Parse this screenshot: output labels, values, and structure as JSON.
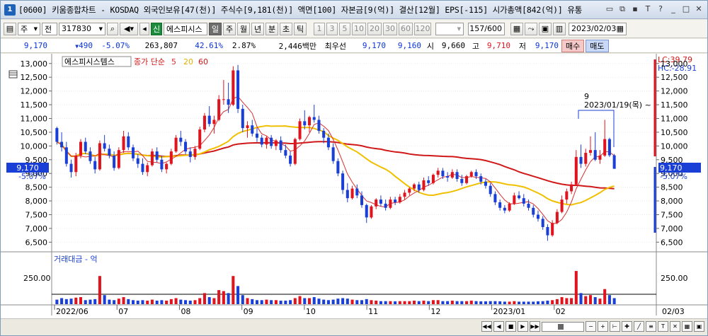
{
  "window": {
    "number": "1",
    "title": "[0600] 키움종합차트 - KOSDAQ 외국인보유[47(천)] 주식수[9,181(천)] 액면[100] 자본금[9(억)] 결산[12월] EPS[-115] 시가총액[842(억)] 유통"
  },
  "toolbar": {
    "market": "주",
    "period_type": "전",
    "code": "317830",
    "new_badge": "신",
    "stock_name": "에스피시스",
    "periods": [
      "일",
      "주",
      "월",
      "년",
      "분",
      "초",
      "틱"
    ],
    "active_period": "일",
    "intervals": [
      "1",
      "3",
      "5",
      "10",
      "20",
      "30",
      "60",
      "120"
    ],
    "count": "157",
    "count_total": "/600",
    "date": "2023/02/03"
  },
  "quote": {
    "price": "9,170",
    "change": "490",
    "change_pct": "-5.07%",
    "volume": "263,807",
    "volume_ratio": "42.61%",
    "turnover_rate": "2.87%",
    "amount": "2,446백만",
    "best_bid_label": "최우선",
    "ask": "9,170",
    "bid": "9,160",
    "open_label": "시",
    "open": "9,660",
    "high_label": "고",
    "high": "9,710",
    "low_label": "저",
    "low": "9,170",
    "buy_label": "매수",
    "sell_label": "매도"
  },
  "chart": {
    "stock_tag": "에스피시스템스",
    "legend_label": "종가 단순",
    "ma_periods": [
      "5",
      "20",
      "60"
    ],
    "lc": "LC:39.79",
    "hc": "HC:-28.91",
    "price_tag": "9,170",
    "price_tag_pct": "-5.07%",
    "annotation_count": "9",
    "annotation_date": "2023/01/19(목) ~",
    "volume_panel_label": "거래대금 - 억",
    "volume_tick": "250.00",
    "date_labels": [
      "2022/06",
      "07",
      "08",
      "09",
      "10",
      "11",
      "12",
      "2023/01",
      "02"
    ],
    "right_date": "02/03"
  },
  "chart_data": {
    "type": "candlestick",
    "yticks": [
      "13,000",
      "12,500",
      "12,000",
      "11,500",
      "11,000",
      "10,500",
      "10,000",
      "9,500",
      "9,000",
      "8,500",
      "8,000",
      "7,500",
      "7,000",
      "6,500"
    ],
    "ylim": [
      6200,
      13200
    ],
    "volume_ylim": [
      0,
      450
    ],
    "colors": {
      "up": "#e0141e",
      "down": "#1a3fd6",
      "ma5": "#d83030",
      "ma20": "#f0c000",
      "ma60": "#d01818"
    },
    "candles": [
      [
        10650,
        10700,
        10050,
        10150,
        45
      ],
      [
        10150,
        10500,
        9800,
        9950,
        60
      ],
      [
        9950,
        10150,
        9250,
        9350,
        50
      ],
      [
        9350,
        9500,
        8850,
        9050,
        55
      ],
      [
        9050,
        9750,
        8900,
        9650,
        65
      ],
      [
        9650,
        10250,
        9550,
        10150,
        70
      ],
      [
        10150,
        10300,
        9700,
        9800,
        40
      ],
      [
        9800,
        9950,
        9350,
        9450,
        45
      ],
      [
        9450,
        9600,
        9000,
        9150,
        50
      ],
      [
        9150,
        10200,
        9100,
        10100,
        280
      ],
      [
        10100,
        10400,
        9800,
        9900,
        90
      ],
      [
        9900,
        10050,
        9550,
        9650,
        45
      ],
      [
        9650,
        9800,
        9100,
        9200,
        40
      ],
      [
        9200,
        9950,
        9150,
        9850,
        55
      ],
      [
        9850,
        10550,
        9750,
        10350,
        70
      ],
      [
        10350,
        10500,
        9850,
        9950,
        50
      ],
      [
        9950,
        10050,
        9450,
        9550,
        40
      ],
      [
        9550,
        9700,
        9200,
        9350,
        35
      ],
      [
        9350,
        9550,
        8950,
        9050,
        40
      ],
      [
        9050,
        9400,
        8900,
        9300,
        35
      ],
      [
        9300,
        9900,
        9250,
        9800,
        45
      ],
      [
        9800,
        9950,
        9400,
        9500,
        35
      ],
      [
        9500,
        9650,
        9050,
        9150,
        40
      ],
      [
        9150,
        9400,
        9000,
        9350,
        35
      ],
      [
        9350,
        9900,
        9300,
        9800,
        50
      ],
      [
        9800,
        10400,
        9750,
        10300,
        60
      ],
      [
        10300,
        10550,
        10000,
        10150,
        45
      ],
      [
        10150,
        10250,
        9700,
        9800,
        40
      ],
      [
        9800,
        9950,
        9400,
        9600,
        35
      ],
      [
        9600,
        10000,
        9500,
        9900,
        40
      ],
      [
        9900,
        10700,
        9850,
        10600,
        60
      ],
      [
        10600,
        11200,
        10500,
        11100,
        110
      ],
      [
        11100,
        11450,
        10700,
        10800,
        70
      ],
      [
        10800,
        11100,
        10450,
        10950,
        60
      ],
      [
        10950,
        11850,
        10900,
        11700,
        140
      ],
      [
        11700,
        12400,
        11500,
        11700,
        130
      ],
      [
        11700,
        12300,
        11200,
        11500,
        110
      ],
      [
        11500,
        12900,
        11450,
        12750,
        280
      ],
      [
        12750,
        12950,
        11200,
        11350,
        180
      ],
      [
        11350,
        11500,
        10500,
        10650,
        90
      ],
      [
        10650,
        10900,
        10300,
        10750,
        60
      ],
      [
        10750,
        10950,
        10350,
        10450,
        50
      ],
      [
        10450,
        10650,
        10150,
        10300,
        40
      ],
      [
        10300,
        10400,
        9950,
        10050,
        40
      ],
      [
        10050,
        10350,
        9900,
        10300,
        45
      ],
      [
        10300,
        10400,
        9900,
        10000,
        40
      ],
      [
        10000,
        10250,
        9850,
        10200,
        40
      ],
      [
        10200,
        10350,
        9750,
        9850,
        35
      ],
      [
        9850,
        10050,
        9550,
        9650,
        35
      ],
      [
        9650,
        9800,
        9250,
        9350,
        40
      ],
      [
        9350,
        10300,
        9300,
        10250,
        60
      ],
      [
        10250,
        11000,
        10200,
        10900,
        80
      ],
      [
        10900,
        11300,
        10600,
        10750,
        60
      ],
      [
        10750,
        11100,
        10500,
        11050,
        60
      ],
      [
        11050,
        11500,
        10850,
        10950,
        70
      ],
      [
        10950,
        11100,
        10450,
        10550,
        55
      ],
      [
        10550,
        10650,
        10100,
        10300,
        45
      ],
      [
        10300,
        10450,
        9850,
        9950,
        40
      ],
      [
        9950,
        10100,
        9350,
        9450,
        45
      ],
      [
        9450,
        9550,
        8900,
        9000,
        55
      ],
      [
        9000,
        9100,
        8250,
        8400,
        60
      ],
      [
        8400,
        8650,
        7950,
        8100,
        55
      ],
      [
        8100,
        8550,
        8050,
        8450,
        45
      ],
      [
        8450,
        8600,
        8100,
        8200,
        40
      ],
      [
        8200,
        8350,
        7750,
        7850,
        40
      ],
      [
        7850,
        7900,
        7200,
        7400,
        50
      ],
      [
        7400,
        7850,
        7350,
        7800,
        40
      ],
      [
        7800,
        8100,
        7700,
        8050,
        35
      ],
      [
        8050,
        8200,
        7800,
        7900,
        30
      ],
      [
        7900,
        8050,
        7650,
        7750,
        30
      ],
      [
        7750,
        8150,
        7700,
        8050,
        30
      ],
      [
        8050,
        8150,
        7850,
        7950,
        28
      ],
      [
        7950,
        8250,
        7900,
        8150,
        30
      ],
      [
        8150,
        8400,
        8050,
        8300,
        30
      ],
      [
        8300,
        8500,
        8200,
        8450,
        30
      ],
      [
        8450,
        8650,
        8350,
        8600,
        35
      ],
      [
        8600,
        8700,
        8300,
        8400,
        30
      ],
      [
        8400,
        8850,
        8350,
        8750,
        35
      ],
      [
        8750,
        8900,
        8550,
        8650,
        30
      ],
      [
        8650,
        9000,
        8600,
        8950,
        40
      ],
      [
        8950,
        9200,
        8850,
        9100,
        40
      ],
      [
        9100,
        9200,
        8800,
        8900,
        30
      ],
      [
        8900,
        9050,
        8700,
        8850,
        30
      ],
      [
        8850,
        9150,
        8800,
        9050,
        35
      ],
      [
        9050,
        9150,
        8700,
        8800,
        30
      ],
      [
        8800,
        8950,
        8550,
        8650,
        30
      ],
      [
        8650,
        8950,
        8600,
        8900,
        30
      ],
      [
        8900,
        9100,
        8850,
        9050,
        35
      ],
      [
        9050,
        9150,
        8800,
        8900,
        30
      ],
      [
        8900,
        9000,
        8600,
        8700,
        28
      ],
      [
        8700,
        8800,
        8450,
        8550,
        28
      ],
      [
        8550,
        8650,
        8150,
        8250,
        30
      ],
      [
        8250,
        8350,
        7850,
        7950,
        30
      ],
      [
        7950,
        8050,
        7650,
        7750,
        28
      ],
      [
        7750,
        7850,
        7550,
        7650,
        25
      ],
      [
        7650,
        7950,
        7600,
        7900,
        25
      ],
      [
        7900,
        8300,
        7850,
        8200,
        30
      ],
      [
        8200,
        8350,
        8050,
        8100,
        25
      ],
      [
        8100,
        8250,
        7800,
        7900,
        25
      ],
      [
        7900,
        8050,
        7650,
        7750,
        25
      ],
      [
        7750,
        7850,
        7400,
        7500,
        25
      ],
      [
        7500,
        7650,
        7250,
        7350,
        28
      ],
      [
        7350,
        7450,
        6950,
        7050,
        30
      ],
      [
        7050,
        7150,
        6550,
        6750,
        35
      ],
      [
        6750,
        7300,
        6700,
        7200,
        40
      ],
      [
        7200,
        7700,
        7150,
        7600,
        50
      ],
      [
        7600,
        8200,
        7550,
        8050,
        70
      ],
      [
        8050,
        8450,
        7900,
        8350,
        60
      ],
      [
        8350,
        8700,
        8250,
        8600,
        60
      ],
      [
        8600,
        9850,
        8550,
        9600,
        330
      ],
      [
        9600,
        10050,
        9200,
        9350,
        110
      ],
      [
        9350,
        9900,
        9250,
        9750,
        80
      ],
      [
        9750,
        10350,
        9650,
        9850,
        90
      ],
      [
        9850,
        10500,
        9450,
        9500,
        70
      ],
      [
        9500,
        9850,
        9350,
        9650,
        55
      ],
      [
        9650,
        10950,
        9600,
        10250,
        150
      ],
      [
        10250,
        10300,
        9600,
        9660,
        90
      ],
      [
        9660,
        9710,
        9170,
        9170,
        60
      ]
    ]
  }
}
